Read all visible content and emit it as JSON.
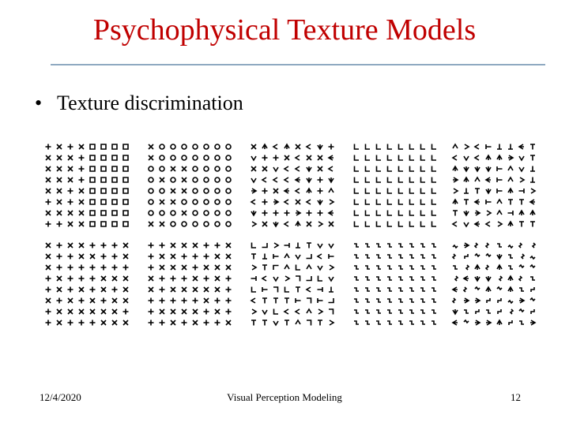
{
  "slide": {
    "title": "Psychophysical Texture Models",
    "bullets": [
      "Texture discrimination"
    ],
    "footer": {
      "date": "12/4/2020",
      "center": "Visual Perception Modeling",
      "page": "12"
    }
  }
}
